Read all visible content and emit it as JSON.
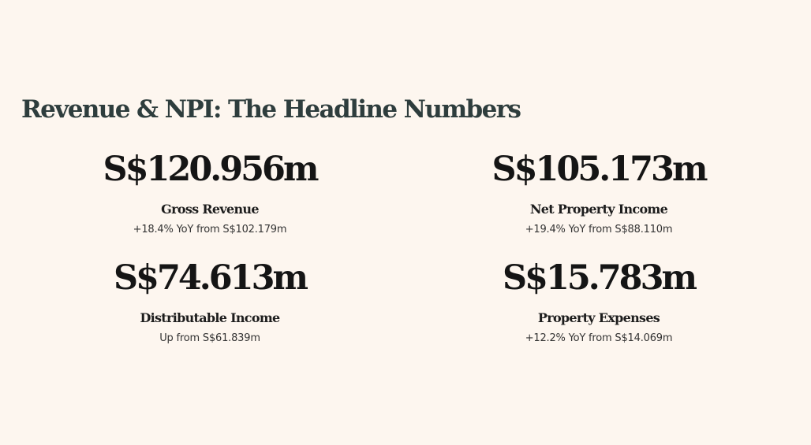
{
  "section": {
    "title": "Revenue & NPI: The Headline Numbers"
  },
  "metrics": [
    {
      "value": "S$120.956m",
      "label": "Gross Revenue",
      "detail": "+18.4% YoY from S$102.179m"
    },
    {
      "value": "S$105.173m",
      "label": "Net Property Income",
      "detail": "+19.4% YoY from S$88.110m"
    },
    {
      "value": "S$74.613m",
      "label": "Distributable Income",
      "detail": "Up from S$61.839m"
    },
    {
      "value": "S$15.783m",
      "label": "Property Expenses",
      "detail": "+12.2% YoY from S$14.069m"
    }
  ]
}
